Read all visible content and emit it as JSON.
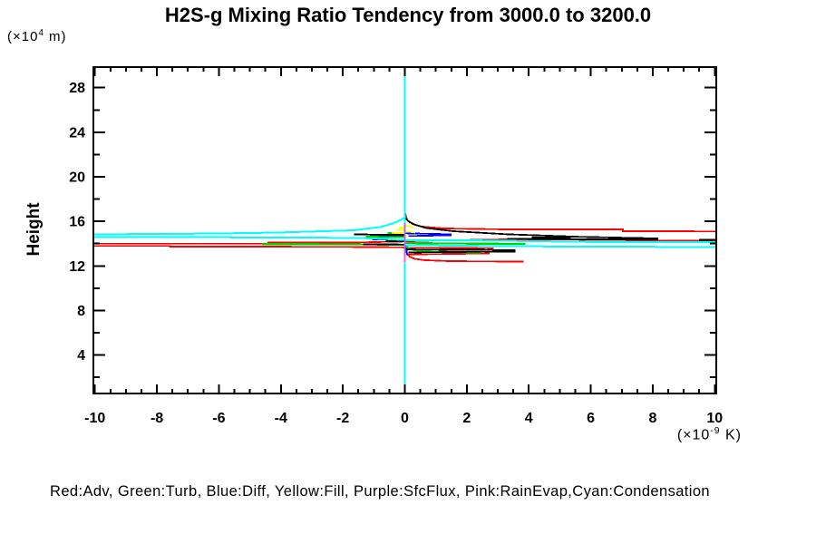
{
  "title": "H2S-g Mixing Ratio Tendency from 3000.0 to 3200.0",
  "y_axis_title": "Height",
  "y_unit": {
    "prefix": "(×10",
    "exponent": "4",
    "suffix": " m)"
  },
  "x_unit": {
    "prefix": "(×10",
    "exponent": "-9",
    "suffix": " K)"
  },
  "legend_text": "Red:Adv, Green:Turb, Blue:Diff, Yellow:Fill, Purple:SfcFlux, Pink:RainEvap,Cyan:Condensation",
  "colors": {
    "axis": "#000000",
    "adv": "#ff0000",
    "turb": "#00d400",
    "diff": "#0000ff",
    "fill": "#ffff00",
    "sfcflux": "#bb66ee",
    "rainevap": "#ff69b4",
    "condensation": "#00ffff",
    "unlabeled": "#000000"
  },
  "axes": {
    "x": {
      "view_min": -10.05,
      "view_max": 10.05,
      "major_ticks": [
        -10,
        -8,
        -6,
        -4,
        -2,
        0,
        2,
        4,
        6,
        8,
        10
      ],
      "tick_labels": [
        "-10",
        "-8",
        "-6",
        "-4",
        "-2",
        "0",
        "2",
        "4",
        "6",
        "8",
        "10"
      ],
      "minor_step": 0.5
    },
    "y": {
      "view_min": 0.55,
      "view_max": 29.85,
      "major_ticks": [
        4,
        8,
        12,
        16,
        20,
        24,
        28
      ],
      "tick_labels": [
        "4",
        "8",
        "12",
        "16",
        "20",
        "24",
        "28"
      ],
      "minor_ticks": [
        2,
        6,
        10,
        14,
        18,
        22,
        26
      ]
    }
  },
  "chart_data": {
    "type": "line",
    "title": "H2S-g Mixing Ratio Tendency from 3000.0 to 3200.0",
    "xlabel": "(×10-9 K)",
    "ylabel": "Height (×10 4 m)",
    "xlim": [
      -10,
      10
    ],
    "ylim": [
      0.55,
      29.85
    ],
    "grid": false,
    "legend_position": "bottom-caption",
    "description": "Vertical profiles of mixing-ratio tendency terms vs height; all terms are ~0 (vertical line at x=0) except sharp spikes between heights ~12.3 and ~16.3 (×10^4 m); several spikes run off-scale left and right.",
    "series": [
      {
        "name": "Adv",
        "color": "#ff0000",
        "width": 1.8,
        "paths": [
          [
            [
              0,
              17.8
            ],
            [
              0.01,
              16.75
            ],
            [
              0.08,
              16.1
            ],
            [
              0.25,
              15.77
            ],
            [
              0.54,
              15.53
            ],
            [
              1.27,
              15.36
            ],
            [
              3.31,
              15.28
            ],
            [
              7.04,
              15.28
            ],
            [
              7.04,
              15.12
            ],
            [
              10.05,
              15.1
            ]
          ],
          [
            [
              10.05,
              14.28
            ],
            [
              8.26,
              14.28
            ],
            [
              5.93,
              14.35
            ],
            [
              3.31,
              14.39
            ],
            [
              0.69,
              14.27
            ],
            [
              0,
              14.2
            ],
            [
              -1.64,
              14.1
            ],
            [
              -4.41,
              14.1
            ],
            [
              -4.41,
              14.0
            ],
            [
              -7.58,
              14.0
            ],
            [
              -10.05,
              14.0
            ]
          ],
          [
            [
              -10.05,
              13.79
            ],
            [
              -7.58,
              13.79
            ],
            [
              -7.58,
              13.74
            ],
            [
              -4.3,
              13.73
            ],
            [
              -1.9,
              13.71
            ],
            [
              -0.33,
              13.68
            ],
            [
              0,
              13.66
            ]
          ],
          [
            [
              0,
              13.64
            ],
            [
              2.15,
              13.61
            ],
            [
              2.87,
              13.57
            ]
          ],
          [
            [
              2.73,
              13.12
            ],
            [
              1.56,
              13.08
            ],
            [
              0.4,
              13.04
            ],
            [
              0.06,
              13.0
            ]
          ],
          [
            [
              0.03,
              13.49
            ],
            [
              0.06,
              13.17
            ],
            [
              0.15,
              12.84
            ],
            [
              0.32,
              12.64
            ],
            [
              0.63,
              12.52
            ],
            [
              1.42,
              12.43
            ],
            [
              2.58,
              12.41
            ],
            [
              3.84,
              12.39
            ]
          ]
        ]
      },
      {
        "name": "Diff",
        "color": "#0000ff",
        "width": 1.8,
        "paths": [
          [
            [
              0,
              14.93
            ],
            [
              0.69,
              14.89
            ],
            [
              1.48,
              14.84
            ],
            [
              1.48,
              14.75
            ],
            [
              0.69,
              14.71
            ],
            [
              0.11,
              14.69
            ]
          ],
          [
            [
              -1.12,
              14.72
            ],
            [
              -0.47,
              14.71
            ],
            [
              0,
              14.7
            ]
          ],
          [
            [
              -1.06,
              14.37
            ],
            [
              -0.33,
              14.35
            ],
            [
              0,
              14.33
            ]
          ],
          [
            [
              0.05,
              13.9
            ],
            [
              0.06,
              13.45
            ],
            [
              0.07,
              13.0
            ]
          ]
        ]
      },
      {
        "name": "Turb",
        "color": "#00d400",
        "width": 2.2,
        "paths": [
          [
            [
              -4.61,
              13.96
            ],
            [
              -3.97,
              13.96
            ],
            [
              -1.64,
              13.94
            ],
            [
              -0.18,
              13.91
            ],
            [
              0,
              13.9
            ]
          ],
          [
            [
              -1.26,
              14.61
            ],
            [
              -0.47,
              14.59
            ],
            [
              0,
              14.58
            ]
          ],
          [
            [
              -0.56,
              14.95
            ],
            [
              -0.27,
              14.94
            ]
          ],
          [
            [
              0,
              14.06
            ],
            [
              0.69,
              14.04
            ],
            [
              2.15,
              14.0
            ],
            [
              3.31,
              13.99
            ],
            [
              3.89,
              13.98
            ]
          ],
          [
            [
              0.05,
              13.73
            ],
            [
              0.17,
              13.53
            ],
            [
              0.34,
              13.41
            ],
            [
              0.69,
              13.31
            ],
            [
              1.27,
              13.26
            ],
            [
              2.44,
              13.21
            ]
          ]
        ]
      },
      {
        "name": "unlabeled-black",
        "color": "#000000",
        "width": 1.8,
        "paths": [
          [
            [
              0,
              16.34
            ],
            [
              0.11,
              16.01
            ],
            [
              0.34,
              15.69
            ],
            [
              0.69,
              15.4
            ],
            [
              1.56,
              15.12
            ],
            [
              3.31,
              14.84
            ],
            [
              5.64,
              14.61
            ],
            [
              8.18,
              14.47
            ]
          ],
          [
            [
              8.18,
              14.39
            ],
            [
              5.93,
              14.39
            ],
            [
              4.6,
              14.43
            ],
            [
              3.31,
              14.45
            ]
          ],
          [
            [
              9.49,
              14.34
            ],
            [
              10.05,
              14.34
            ]
          ],
          [
            [
              -1.64,
              14.83
            ],
            [
              -0.77,
              14.81
            ],
            [
              0,
              14.79
            ]
          ],
          [
            [
              -0.62,
              14.22
            ],
            [
              0,
              14.21
            ]
          ],
          [
            [
              -1.35,
              13.95
            ],
            [
              -0.47,
              13.93
            ],
            [
              0,
              13.92
            ]
          ],
          [
            [
              0,
              13.49
            ],
            [
              0.69,
              13.47
            ],
            [
              2.15,
              13.45
            ],
            [
              3.54,
              13.41
            ],
            [
              3.54,
              13.29
            ],
            [
              2.15,
              13.26
            ],
            [
              0.98,
              13.23
            ],
            [
              0.11,
              13.21
            ]
          ],
          [
            [
              4.1,
              14.55
            ],
            [
              5.35,
              14.55
            ]
          ]
        ]
      },
      {
        "name": "Fill",
        "color": "#ffff00",
        "width": 1.8,
        "paths": [
          [
            [
              0,
              15.61
            ],
            [
              0.17,
              15.57
            ],
            [
              0.28,
              15.4
            ]
          ],
          [
            [
              -0.27,
              15.25
            ],
            [
              0,
              15.23
            ]
          ],
          [
            [
              0,
              15.12
            ],
            [
              0.34,
              15.0
            ]
          ],
          [
            [
              -0.42,
              14.97
            ],
            [
              -0.06,
              14.95
            ]
          ],
          [
            [
              -0.18,
              15.46
            ],
            [
              0,
              15.42
            ]
          ]
        ]
      },
      {
        "name": "Condensation",
        "color": "#00ffff",
        "width": 2,
        "paths": [
          [
            [
              0,
              29.85
            ],
            [
              0,
              0.55
            ]
          ],
          [
            [
              -10.05,
              14.83
            ],
            [
              -6.15,
              14.91
            ],
            [
              -4.12,
              15.0
            ],
            [
              -1.64,
              15.2
            ],
            [
              -0.77,
              15.5
            ],
            [
              -0.4,
              15.8
            ],
            [
              -0.15,
              16.1
            ],
            [
              -0.05,
              16.26
            ],
            [
              0,
              16.2
            ]
          ],
          [
            [
              -10.05,
              14.57
            ],
            [
              -6,
              14.57
            ],
            [
              -1.5,
              14.52
            ],
            [
              -0.5,
              14.4
            ],
            [
              0,
              14.32
            ],
            [
              2.15,
              14.3
            ],
            [
              5.93,
              14.16
            ],
            [
              10.05,
              14.14
            ]
          ],
          [
            [
              0,
              13.87
            ],
            [
              2.15,
              13.8
            ],
            [
              5.93,
              13.73
            ],
            [
              10.05,
              13.7
            ]
          ]
        ]
      },
      {
        "name": "RainEvap",
        "color": "#ff69b4",
        "width": 2,
        "paths": [
          [
            [
              0,
              15.4
            ],
            [
              0,
              12.35
            ]
          ]
        ]
      },
      {
        "name": "SfcFlux",
        "color": "#bb66ee",
        "width": 2,
        "paths": [
          [
            [
              0,
              15.85
            ],
            [
              0,
              12.9
            ]
          ]
        ]
      }
    ]
  }
}
